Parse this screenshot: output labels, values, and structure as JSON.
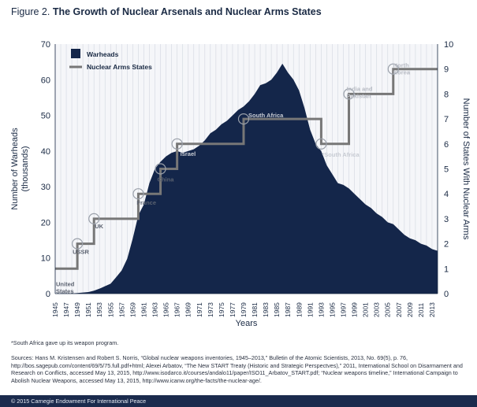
{
  "figure_label": "Figure 2.",
  "title": "The Growth of Nuclear Arsenals and Nuclear Arms States",
  "chart_data": {
    "type": "area+step",
    "title": "The Growth of Nuclear Arsenals and Nuclear Arms States",
    "xlabel": "Years",
    "ylabel_left": "Number of Warheads (thousands)",
    "ylabel_right": "Number of States With Nuclear Arms",
    "x_range": [
      1945,
      2014
    ],
    "ylim_left": [
      0,
      70
    ],
    "ylim_right": [
      0,
      10
    ],
    "yticks_left": [
      0,
      10,
      20,
      30,
      40,
      50,
      60,
      70
    ],
    "yticks_right": [
      0,
      1,
      2,
      3,
      4,
      5,
      6,
      7,
      8,
      9,
      10
    ],
    "xticks": [
      "1945",
      "1947",
      "1949",
      "1951",
      "1953",
      "1955",
      "1957",
      "1959",
      "1961",
      "1963",
      "1965",
      "1967",
      "1969",
      "1971",
      "1973",
      "1975",
      "1977",
      "1979",
      "1981",
      "1983",
      "1985",
      "1987",
      "1989",
      "1991",
      "1993",
      "1995",
      "1997",
      "1999",
      "2001",
      "2003",
      "2005",
      "2007",
      "2009",
      "2011",
      "2013"
    ],
    "legend": {
      "warheads": "Warheads",
      "states": "Nuclear Arms States"
    },
    "warheads": {
      "name": "Warheads",
      "color": "#14264a",
      "x": [
        1945,
        1946,
        1947,
        1948,
        1949,
        1950,
        1951,
        1952,
        1953,
        1954,
        1955,
        1956,
        1957,
        1958,
        1959,
        1960,
        1961,
        1962,
        1963,
        1964,
        1965,
        1966,
        1967,
        1968,
        1969,
        1970,
        1971,
        1972,
        1973,
        1974,
        1975,
        1976,
        1977,
        1978,
        1979,
        1980,
        1981,
        1982,
        1983,
        1984,
        1985,
        1986,
        1987,
        1988,
        1989,
        1990,
        1991,
        1992,
        1993,
        1994,
        1995,
        1996,
        1997,
        1998,
        1999,
        2000,
        2001,
        2002,
        2003,
        2004,
        2005,
        2006,
        2007,
        2008,
        2009,
        2010,
        2011,
        2012,
        2013,
        2014
      ],
      "values": [
        0.002,
        0.009,
        0.013,
        0.05,
        0.17,
        0.3,
        0.44,
        0.84,
        1.4,
        2.1,
        2.8,
        4.6,
        6.5,
        9.8,
        15.5,
        22,
        25,
        31,
        35,
        37,
        38.5,
        39.5,
        40,
        39.5,
        40,
        40.5,
        41.5,
        43,
        45,
        46,
        47.5,
        48.5,
        50,
        51.5,
        52.5,
        54,
        56,
        58.5,
        59,
        60,
        62,
        64.5,
        62,
        60,
        57,
        52,
        46,
        42,
        40,
        36,
        33.5,
        31,
        30.5,
        29.5,
        28,
        26.5,
        25,
        24,
        22.5,
        21.5,
        20,
        19.5,
        18,
        16.5,
        15.5,
        15,
        14,
        13.5,
        12.5,
        12
      ]
    },
    "states": {
      "name": "Nuclear Arms States",
      "color": "#777777",
      "steps": [
        {
          "year": 1945,
          "count": 1,
          "label": "United\nStates"
        },
        {
          "year": 1949,
          "count": 2,
          "label": "USSR"
        },
        {
          "year": 1952,
          "count": 3,
          "label": "UK"
        },
        {
          "year": 1960,
          "count": 4,
          "label": "France"
        },
        {
          "year": 1964,
          "count": 5,
          "label": "China"
        },
        {
          "year": 1967,
          "count": 6,
          "label": "Israel"
        },
        {
          "year": 1979,
          "count": 7,
          "label": "South Africa"
        },
        {
          "year": 1993,
          "count": 6,
          "label": "*South Africa"
        },
        {
          "year": 1998,
          "count": 8,
          "label": "India and\nPakistan"
        },
        {
          "year": 2006,
          "count": 9,
          "label": "North\nKorea"
        }
      ],
      "end_year": 2014
    }
  },
  "footnote": "*South Africa gave up its weapon program.",
  "sources": "Sources: Hans M. Kristensen and Robert S. Norris, “Global nuclear weapons inventories, 1945–2013,” Bulletin of the Atomic Scientists, 2013, No. 69(5), p. 76, http://bos.sagepub.com/content/69/5/75.full.pdf+html; Alexei Arbatov, “The New START Treaty (Historic and Strategic Perspectves),” 2011, International School on Disarmament and Research on Conflicts, accessed May 13, 2015, http://www.isodarco.it/courses/andalo11/paper/ISO11_Arbatov_START.pdf; “Nuclear weapons timeline,” International Campaign to Abolish Nuclear Weapons, accessed May 13, 2015, http://www.icanw.org/the-facts/the-nuclear-age/.",
  "footer": "© 2015 Carnegie Endowment For International Peace"
}
